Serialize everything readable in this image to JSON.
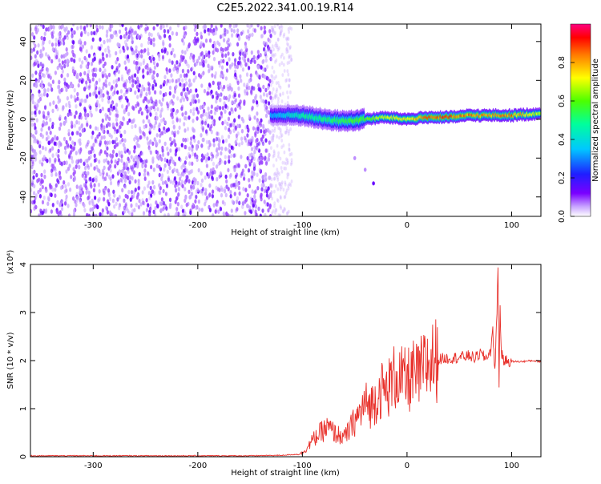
{
  "title": "C2E5.2022.341.00.19.R14",
  "colors": {
    "snr_line": "#e8302a",
    "spectrogram_noise": "#8a2be2",
    "axis": "#000000"
  },
  "colorbar": {
    "label": "Normalized spectral amplitude",
    "ticks": [
      "0.0",
      "0.2",
      "0.4",
      "0.6",
      "0.8"
    ],
    "range": [
      0,
      1
    ]
  },
  "chart_data": [
    {
      "type": "heatmap",
      "xlabel": "Height of straight line (km)",
      "ylabel": "Frequency (Hz)",
      "xlim": [
        -360,
        128
      ],
      "ylim": [
        -50,
        49
      ],
      "xticks": [
        -300,
        -200,
        -100,
        0,
        100
      ],
      "xtick_labels": [
        "-300",
        "-200",
        "-100",
        "0",
        "100"
      ],
      "yticks": [
        -40,
        -20,
        0,
        20,
        40
      ],
      "ytick_labels": [
        "-40",
        "-20",
        "0",
        "20",
        "40"
      ],
      "grid": false,
      "noise_region_x": [
        -360,
        -130
      ],
      "signal_band": {
        "x": [
          -130,
          -100,
          -80,
          -60,
          -40,
          -20,
          0,
          20,
          40,
          60,
          80,
          100,
          128
        ],
        "center_freq_hz": [
          2,
          2,
          0,
          -1,
          0,
          1,
          0,
          1,
          1,
          2,
          2,
          2,
          3
        ],
        "peak_amplitude": [
          0.35,
          0.5,
          0.55,
          0.6,
          0.65,
          0.75,
          0.8,
          0.95,
          0.95,
          0.9,
          0.85,
          0.9,
          0.7
        ]
      },
      "drift_feature": {
        "x": [
          -50,
          -40,
          -32
        ],
        "freq_hz": [
          -20,
          -26,
          -33
        ]
      }
    },
    {
      "type": "line",
      "xlabel": "Height of straight line (km)",
      "ylabel": "SNR (10 * v/v)",
      "scale_note": "(x10⁴)",
      "xlim": [
        -360,
        128
      ],
      "ylim": [
        0,
        4
      ],
      "xticks": [
        -300,
        -200,
        -100,
        0,
        100
      ],
      "xtick_labels": [
        "-300",
        "-200",
        "-100",
        "0",
        "100"
      ],
      "yticks": [
        0,
        1,
        2,
        3,
        4
      ],
      "ytick_labels": [
        "0",
        "1",
        "2",
        "3",
        "4"
      ],
      "grid": false,
      "series": [
        {
          "x": [
            -360,
            -300,
            -250,
            -200,
            -150,
            -120,
            -105,
            -100,
            -95,
            -90,
            -85,
            -80,
            -75,
            -70,
            -65,
            -60,
            -55,
            -50,
            -45,
            -40,
            -35,
            -30,
            -25,
            -20,
            -15,
            -10,
            -5,
            0,
            5,
            10,
            15,
            20,
            25,
            30,
            40,
            50,
            60,
            65,
            70,
            75,
            80,
            82,
            84,
            86,
            87,
            88,
            89,
            90,
            92,
            95,
            100,
            110,
            120,
            128
          ],
          "y": [
            0.02,
            0.02,
            0.02,
            0.02,
            0.02,
            0.03,
            0.05,
            0.08,
            0.2,
            0.35,
            0.45,
            0.55,
            0.6,
            0.5,
            0.45,
            0.4,
            0.55,
            0.75,
            0.9,
            1.1,
            1.05,
            1.2,
            1.4,
            1.35,
            1.55,
            1.7,
            1.6,
            1.55,
            1.7,
            1.65,
            1.8,
            1.95,
            2.0,
            2.03,
            2.05,
            2.07,
            2.1,
            2.05,
            2.15,
            2.05,
            2.2,
            2.6,
            1.8,
            3.0,
            4.0,
            1.5,
            3.2,
            2.2,
            2.0,
            2.0,
            1.98,
            1.98,
            2.0,
            1.98
          ]
        }
      ]
    }
  ]
}
